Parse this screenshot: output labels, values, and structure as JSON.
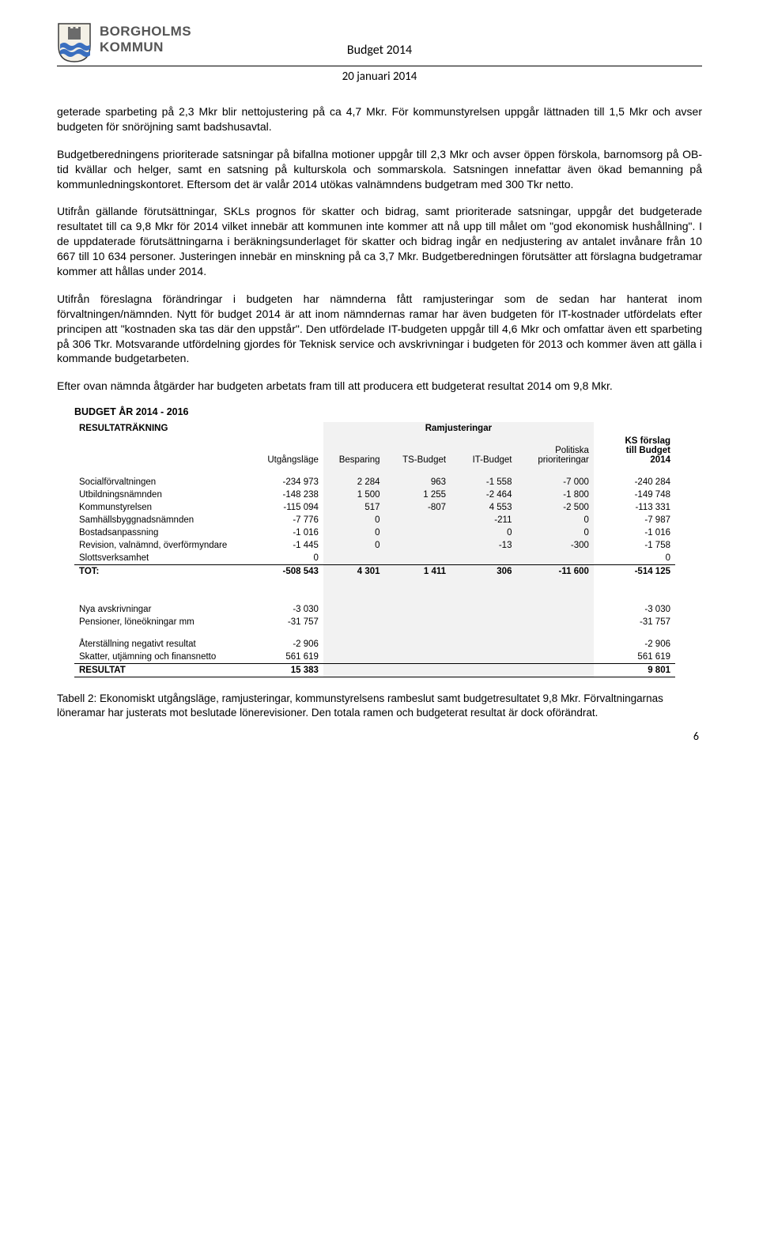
{
  "header": {
    "muni_name": "BORGHOLMS",
    "muni_sub": "KOMMUN",
    "doc_title": "Budget 2014",
    "doc_date": "20 januari 2014",
    "crest": {
      "shield_fill": "#f3f0e6",
      "shield_stroke": "#3a3a3a",
      "wave_color": "#3a6fbf",
      "castle_color": "#6b6b6b"
    }
  },
  "paragraphs": {
    "p1": "geterade sparbeting på 2,3 Mkr blir nettojustering på ca 4,7 Mkr. För kommunstyrelsen uppgår lättnaden till 1,5 Mkr och avser budgeten för snöröjning samt badshusavtal.",
    "p2": "Budgetberedningens prioriterade satsningar på bifallna motioner uppgår till 2,3 Mkr och avser öppen förskola, barnomsorg på OB-tid kvällar och helger, samt en satsning på kulturskola och sommarskola. Satsningen innefattar även ökad bemanning på kommunledningskontoret. Eftersom det är valår 2014 utökas valnämndens budgetram med 300 Tkr netto.",
    "p3": "Utifrån gällande förutsättningar, SKLs prognos för skatter och bidrag, samt prioriterade satsningar, uppgår det budgeterade resultatet till ca 9,8 Mkr för 2014 vilket innebär att kommunen inte kommer att nå upp till målet om \"god ekonomisk hushållning\". I de uppdaterade förutsättningarna i beräkningsunderlaget för skatter och bidrag ingår en nedjustering av antalet invånare från 10 667 till 10 634 personer. Justeringen innebär en minskning på ca 3,7 Mkr. Budgetberedningen förutsätter att förslagna budgetramar kommer att hållas under 2014.",
    "p4": "Utifrån föreslagna förändringar i budgeten har nämnderna fått ramjusteringar som de sedan har hanterat inom förvaltningen/nämnden. Nytt för budget 2014 är att inom nämndernas ramar har även budgeten för IT-kostnader utfördelats efter principen att \"kostnaden ska tas där den uppstår\". Den utfördelade IT-budgeten uppgår till 4,6 Mkr och omfattar även ett sparbeting på 306 Tkr. Motsvarande utfördelning gjordes för Teknisk service och avskrivningar i budgeten för 2013 och kommer även att gälla i kommande budgetarbeten.",
    "p5": "Efter ovan nämnda åtgärder har budgeten arbetats fram till att producera ett budgeterat resultat 2014 om 9,8 Mkr."
  },
  "table": {
    "title": "BUDGET ÅR 2014 - 2016",
    "subtitle": "RESULTATRÄKNING",
    "group_header": "Ramjusteringar",
    "columns": [
      "",
      "Utgångsläge",
      "Besparing",
      "TS-Budget",
      "IT-Budget",
      "Politiska prioriteringar",
      "KS förslag till Budget 2014"
    ],
    "shaded_cols": [
      2,
      3,
      4,
      5
    ],
    "col_widths": [
      "210px",
      "94px",
      "78px",
      "84px",
      "84px",
      "98px",
      "104px"
    ],
    "rows": [
      {
        "label": "Socialförvaltningen",
        "vals": [
          "-234 973",
          "2 284",
          "963",
          "-1 558",
          "-7 000",
          "-240 284"
        ]
      },
      {
        "label": "Utbildningsnämnden",
        "vals": [
          "-148 238",
          "1 500",
          "1 255",
          "-2 464",
          "-1 800",
          "-149 748"
        ]
      },
      {
        "label": "Kommunstyrelsen",
        "vals": [
          "-115 094",
          "517",
          "-807",
          "4 553",
          "-2 500",
          "-113 331"
        ]
      },
      {
        "label": "Samhällsbyggnadsnämnden",
        "vals": [
          "-7 776",
          "0",
          "",
          "-211",
          "0",
          "-7 987"
        ]
      },
      {
        "label": "Bostadsanpassning",
        "vals": [
          "-1 016",
          "0",
          "",
          "0",
          "0",
          "-1 016"
        ]
      },
      {
        "label": "Revision, valnämnd, överförmyndare",
        "vals": [
          "-1 445",
          "0",
          "",
          "-13",
          "-300",
          "-1 758"
        ]
      },
      {
        "label": "Slottsverksamhet",
        "vals": [
          "0",
          "",
          "",
          "",
          "",
          "0"
        ]
      }
    ],
    "tot": {
      "label": "TOT:",
      "vals": [
        "-508 543",
        "4 301",
        "1 411",
        "306",
        "-11 600",
        "-514 125"
      ]
    },
    "lower_rows": [
      {
        "label": "Nya avskrivningar",
        "vals": [
          "-3 030",
          "",
          "",
          "",
          "",
          "-3 030"
        ]
      },
      {
        "label": "Pensioner, löneökningar mm",
        "vals": [
          "-31 757",
          "",
          "",
          "",
          "",
          "-31 757"
        ]
      }
    ],
    "lower2_rows": [
      {
        "label": "Återställning negativt resultat",
        "vals": [
          "-2 906",
          "",
          "",
          "",
          "",
          "-2 906"
        ]
      },
      {
        "label": "Skatter, utjämning och finansnetto",
        "vals": [
          "561 619",
          "",
          "",
          "",
          "",
          "561 619"
        ]
      }
    ],
    "result": {
      "label": "RESULTAT",
      "vals": [
        "15 383",
        "",
        "",
        "",
        "",
        "9 801"
      ]
    }
  },
  "caption": "Tabell 2: Ekonomiskt utgångsläge, ramjusteringar, kommunstyrelsens rambeslut samt budgetresultatet 9,8 Mkr. Förvaltningarnas löneramar har justerats mot beslutade lönerevisioner. Den totala ramen och budgeterat resultat är dock oförändrat.",
  "page_number": "6"
}
